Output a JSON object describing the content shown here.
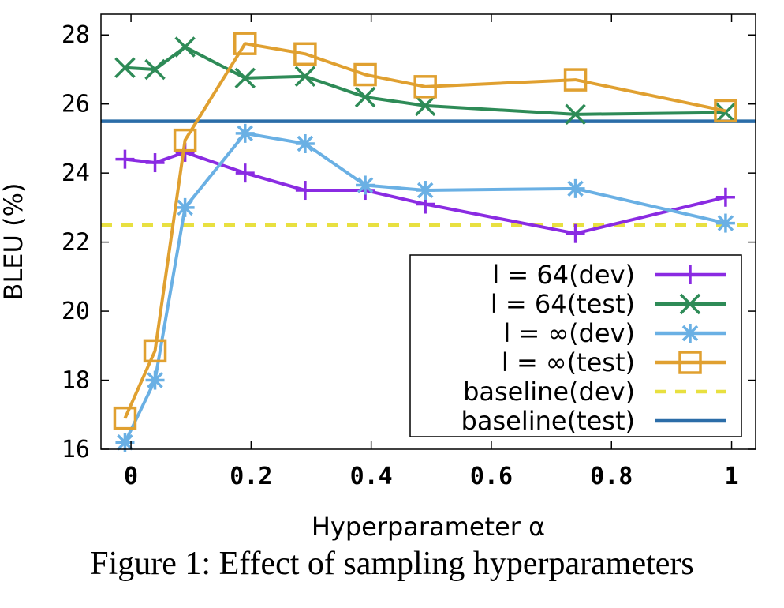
{
  "chart_data": {
    "type": "line",
    "xlabel": "Hyperparameter α",
    "ylabel": "BLEU (%)",
    "xlim": [
      -0.05,
      1.04
    ],
    "ylim": [
      16,
      28.6
    ],
    "x_ticks": [
      0,
      0.2,
      0.4,
      0.6,
      0.8,
      1
    ],
    "x_tick_labels": [
      "0",
      "0.2",
      "0.4",
      "0.6",
      "0.8",
      "1"
    ],
    "y_ticks": [
      16,
      18,
      20,
      22,
      24,
      26,
      28
    ],
    "y_tick_labels": [
      "16",
      "18",
      "20",
      "22",
      "24",
      "26",
      "28"
    ],
    "legend_position": "bottom-right",
    "series": [
      {
        "name": "l = 64(dev)",
        "color": "#8a2be2",
        "marker": "plus",
        "x": [
          -0.01,
          0.04,
          0.09,
          0.19,
          0.29,
          0.39,
          0.49,
          0.74,
          0.99
        ],
        "y": [
          24.4,
          24.3,
          24.6,
          24.0,
          23.5,
          23.5,
          23.1,
          22.25,
          23.3
        ]
      },
      {
        "name": "l = 64(test)",
        "color": "#2e8b57",
        "marker": "cross",
        "x": [
          -0.01,
          0.04,
          0.09,
          0.19,
          0.29,
          0.39,
          0.49,
          0.74,
          0.99
        ],
        "y": [
          27.05,
          27.0,
          27.65,
          26.75,
          26.8,
          26.2,
          25.95,
          25.7,
          25.75
        ]
      },
      {
        "name": "l = ∞(dev)",
        "color": "#6ab0e4",
        "marker": "asterisk",
        "x": [
          -0.01,
          0.04,
          0.09,
          0.19,
          0.29,
          0.39,
          0.49,
          0.74,
          0.99
        ],
        "y": [
          16.2,
          18.0,
          23.0,
          25.15,
          24.85,
          23.65,
          23.5,
          23.55,
          22.55
        ]
      },
      {
        "name": "l = ∞(test)",
        "color": "#e0a030",
        "marker": "square",
        "x": [
          -0.01,
          0.04,
          0.09,
          0.19,
          0.29,
          0.39,
          0.49,
          0.74,
          0.99
        ],
        "y": [
          16.9,
          18.85,
          24.95,
          27.75,
          27.45,
          26.85,
          26.5,
          26.7,
          25.8
        ]
      }
    ],
    "baselines": [
      {
        "name": "baseline(dev)",
        "y": 22.5,
        "color": "#e8e040",
        "style": "dashed"
      },
      {
        "name": "baseline(test)",
        "y": 25.5,
        "color": "#2b6da8",
        "style": "solid"
      }
    ]
  },
  "caption": "Figure 1: Effect of sampling hyperparameters"
}
